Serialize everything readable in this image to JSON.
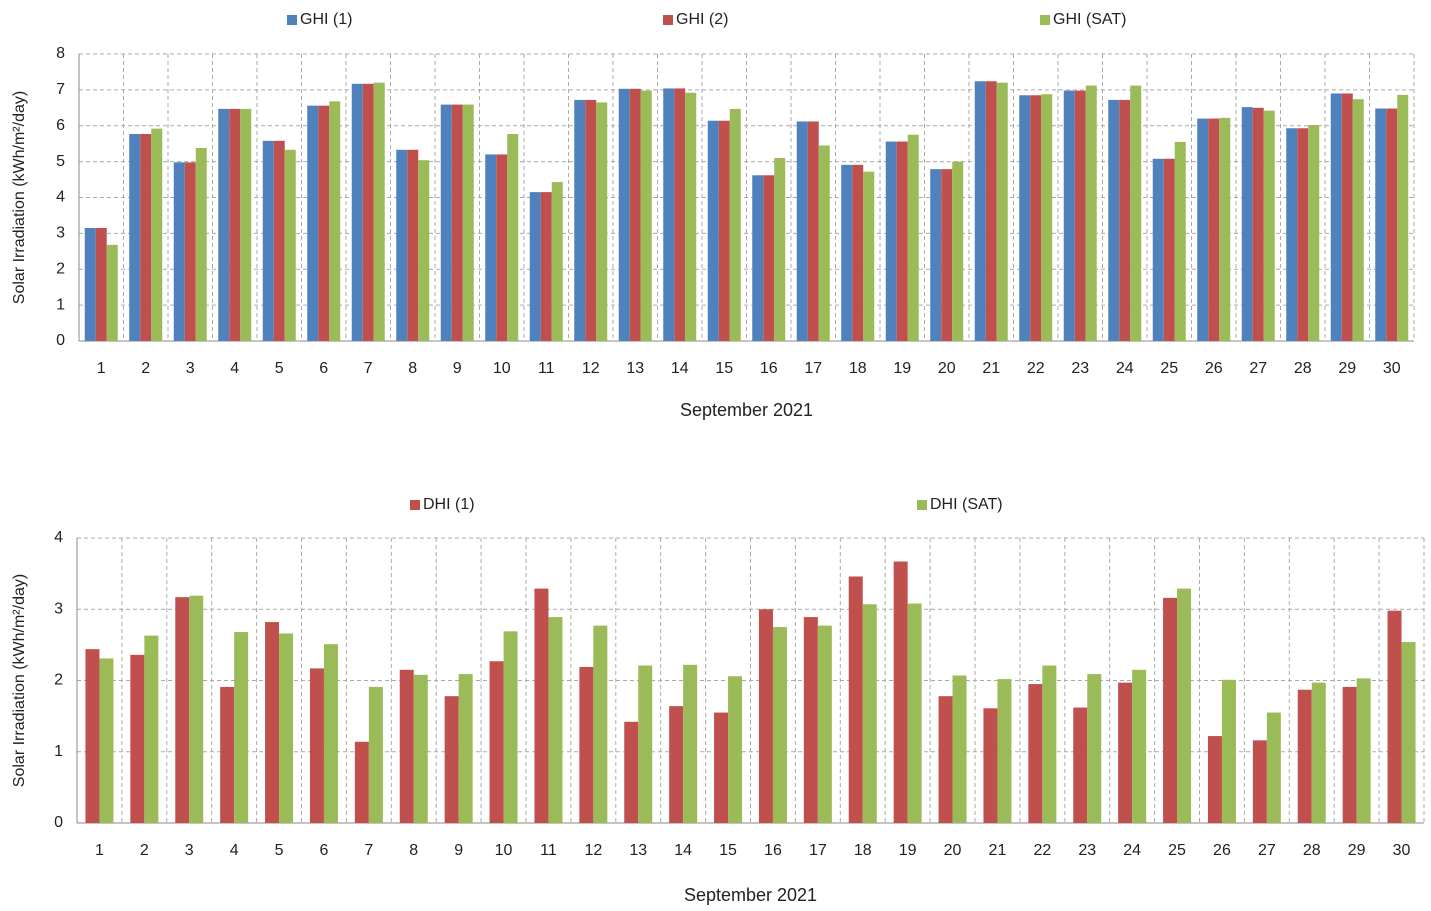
{
  "chart_data": [
    {
      "type": "bar",
      "xlabel": "September 2021",
      "ylabel": "Solar Irradiation (kWh/m²/day)",
      "categories": [
        "1",
        "2",
        "3",
        "4",
        "5",
        "6",
        "7",
        "8",
        "9",
        "10",
        "11",
        "12",
        "13",
        "14",
        "15",
        "16",
        "17",
        "18",
        "19",
        "20",
        "21",
        "22",
        "23",
        "24",
        "25",
        "26",
        "27",
        "28",
        "29",
        "30"
      ],
      "series": [
        {
          "name": "GHI (1)",
          "color": "#4f81bd",
          "values": [
            3.15,
            5.77,
            4.98,
            6.47,
            5.58,
            6.56,
            7.17,
            5.33,
            6.59,
            5.2,
            4.15,
            6.72,
            7.03,
            7.04,
            6.14,
            4.62,
            6.12,
            4.91,
            5.56,
            4.79,
            7.24,
            6.85,
            6.98,
            6.72,
            5.08,
            6.2,
            6.52,
            5.93,
            6.9,
            6.48
          ]
        },
        {
          "name": "GHI (2)",
          "color": "#c0504d",
          "values": [
            3.15,
            5.77,
            4.98,
            6.47,
            5.58,
            6.56,
            7.17,
            5.33,
            6.59,
            5.2,
            4.15,
            6.72,
            7.03,
            7.04,
            6.14,
            4.62,
            6.12,
            4.91,
            5.56,
            4.79,
            7.24,
            6.85,
            6.98,
            6.72,
            5.08,
            6.2,
            6.5,
            5.93,
            6.9,
            6.48
          ]
        },
        {
          "name": "GHI (SAT)",
          "color": "#9bbb59",
          "values": [
            2.68,
            5.92,
            5.38,
            6.47,
            5.33,
            6.68,
            7.2,
            5.04,
            6.59,
            5.77,
            4.43,
            6.65,
            6.98,
            6.92,
            6.47,
            5.1,
            5.45,
            4.72,
            5.75,
            5.0,
            7.2,
            6.88,
            7.12,
            7.12,
            5.55,
            6.22,
            6.42,
            6.02,
            6.74,
            6.86
          ]
        }
      ],
      "ylim": [
        0,
        8
      ],
      "yticks": [
        0,
        1,
        2,
        3,
        4,
        5,
        6,
        7,
        8
      ],
      "grid": true
    },
    {
      "type": "bar",
      "xlabel": "September 2021",
      "ylabel": "Solar Irradiation (kWh/m²/day)",
      "categories": [
        "1",
        "2",
        "3",
        "4",
        "5",
        "6",
        "7",
        "8",
        "9",
        "10",
        "11",
        "12",
        "13",
        "14",
        "15",
        "16",
        "17",
        "18",
        "19",
        "20",
        "21",
        "22",
        "23",
        "24",
        "25",
        "26",
        "27",
        "28",
        "29",
        "30"
      ],
      "series": [
        {
          "name": "DHI (1)",
          "color": "#c0504d",
          "values": [
            2.44,
            2.36,
            3.17,
            1.91,
            2.82,
            2.17,
            1.14,
            2.15,
            1.78,
            2.27,
            3.29,
            2.19,
            1.42,
            1.64,
            1.55,
            3.0,
            2.89,
            3.46,
            3.67,
            1.78,
            1.61,
            1.95,
            1.62,
            1.97,
            3.16,
            1.22,
            1.16,
            1.87,
            1.91,
            2.98
          ]
        },
        {
          "name": "DHI (SAT)",
          "color": "#9bbb59",
          "values": [
            2.31,
            2.63,
            3.19,
            2.68,
            2.66,
            2.51,
            1.91,
            2.08,
            2.09,
            2.69,
            2.89,
            2.77,
            2.21,
            2.22,
            2.06,
            2.75,
            2.77,
            3.07,
            3.08,
            2.07,
            2.02,
            2.21,
            2.09,
            2.15,
            3.29,
            2.01,
            1.55,
            1.97,
            2.03,
            2.54
          ]
        }
      ],
      "ylim": [
        0,
        4
      ],
      "yticks": [
        0,
        1,
        2,
        3,
        4
      ],
      "grid": true
    }
  ]
}
